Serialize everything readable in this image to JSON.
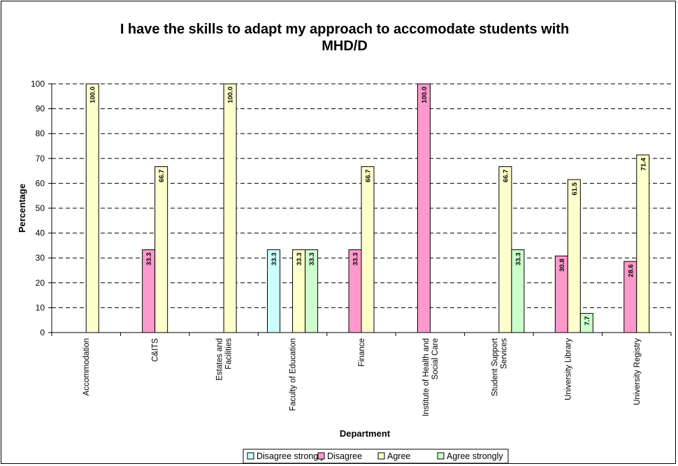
{
  "chart_data": {
    "type": "bar",
    "title": "I have the skills to adapt my approach to accomodate students with MHD/D",
    "title_lines": [
      "I have the skills to adapt my approach to accomodate students with",
      "MHD/D"
    ],
    "xlabel": "Department",
    "ylabel": "Percentage",
    "ylim": [
      0,
      100
    ],
    "yticks": [
      "0",
      "10",
      "20",
      "30",
      "40",
      "50",
      "60",
      "70",
      "80",
      "90",
      "100"
    ],
    "grid": "horizontal dashed",
    "legend_position": "bottom",
    "categories": [
      "Accommodation",
      "C&ITS",
      "Estates and Facilities",
      "Faculty of Education",
      "Finance",
      "Institute of Health and Social Care",
      "Student Support Services",
      "University Library",
      "University Registry"
    ],
    "category_lines": [
      [
        "Accommodation"
      ],
      [
        "C&ITS"
      ],
      [
        "Estates and",
        "Facilities"
      ],
      [
        "Faculty of Education"
      ],
      [
        "Finance"
      ],
      [
        "Institute of Health and",
        "Social Care"
      ],
      [
        "Student Support",
        "Services"
      ],
      [
        "University Library"
      ],
      [
        "University Registry"
      ]
    ],
    "series": [
      {
        "name": "Disagree strongly",
        "color": "#ccffff",
        "values": [
          null,
          null,
          null,
          33.3,
          null,
          null,
          null,
          null,
          null
        ],
        "labels": [
          "",
          "",
          "",
          "33.3",
          "",
          "",
          "",
          "",
          ""
        ]
      },
      {
        "name": "Disagree",
        "color": "#ff99cc",
        "values": [
          null,
          33.3,
          null,
          null,
          33.3,
          100.0,
          null,
          30.8,
          28.6
        ],
        "labels": [
          "",
          "33.3",
          "",
          "",
          "33.3",
          "100.0",
          "",
          "30.8",
          "28.6"
        ]
      },
      {
        "name": "Agree",
        "color": "#ffffcc",
        "values": [
          100.0,
          66.7,
          100.0,
          33.3,
          66.7,
          null,
          66.7,
          61.5,
          71.4
        ],
        "labels": [
          "100.0",
          "66.7",
          "100.0",
          "33.3",
          "66.7",
          "",
          "66.7",
          "61.5",
          "71.4"
        ]
      },
      {
        "name": "Agree strongly",
        "color": "#ccffcc",
        "values": [
          null,
          null,
          null,
          33.3,
          null,
          null,
          33.3,
          7.7,
          null
        ],
        "labels": [
          "",
          "",
          "",
          "33.3",
          "",
          "",
          "33.3",
          "7.7",
          ""
        ]
      }
    ]
  }
}
